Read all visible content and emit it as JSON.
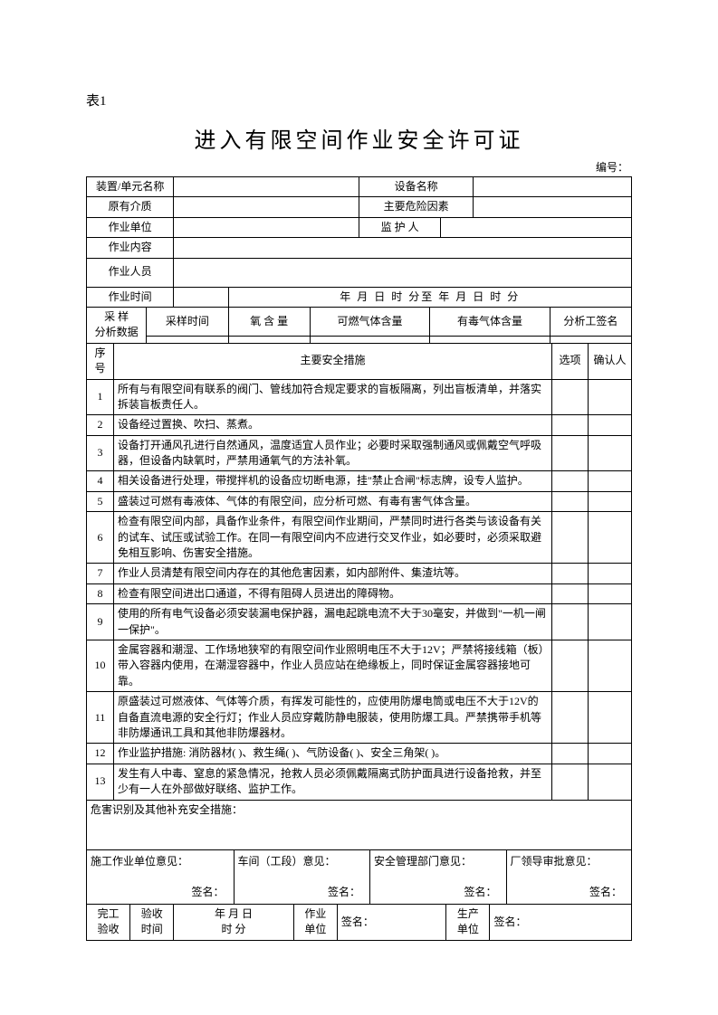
{
  "table_label": "表1",
  "title": "进入有限空间作业安全许可证",
  "serial_label": "编号：",
  "header": {
    "unit_name_label": "装置/单元名称",
    "equipment_name_label": "设备名称",
    "original_medium_label": "原有介质",
    "hazard_factor_label": "主要危险因素",
    "work_unit_label": "作业单位",
    "supervisor_label": "监 护 人",
    "work_content_label": "作业内容",
    "workers_label": "作业人员",
    "work_time_label": "作业时间",
    "work_time_value": "年    月    日    时    分至    年    月    日    时    分"
  },
  "sampling": {
    "main_label": "采 样\n分析数据",
    "time_label": "采样时间",
    "oxygen_label": "氧 含 量",
    "combustible_label": "可燃气体含量",
    "toxic_label": "有毒气体含量",
    "analyst_label": "分析工签名"
  },
  "measures_header": {
    "num": "序号",
    "measure": "主要安全措施",
    "option": "选项",
    "confirmer": "确认人"
  },
  "measures": [
    {
      "n": "1",
      "text": "所有与有限空间有联系的阀门、管线加符合规定要求的盲板隔离，列出盲板清单，并落实拆装盲板责任人。"
    },
    {
      "n": "2",
      "text": "设备经过置换、吹扫、蒸煮。"
    },
    {
      "n": "3",
      "text": "设备打开通风孔进行自然通风，温度适宜人员作业；必要时采取强制通风或佩戴空气呼吸器，但设备内缺氧时，严禁用通氧气的方法补氧。"
    },
    {
      "n": "4",
      "text": "相关设备进行处理，带搅拌机的设备应切断电源，挂\"禁止合闸\"标志牌，设专人监护。"
    },
    {
      "n": "5",
      "text": "盛装过可燃有毒液体、气体的有限空间，应分析可燃、有毒有害气体含量。"
    },
    {
      "n": "6",
      "text": "检查有限空间内部，具备作业条件，有限空间作业期间，严禁同时进行各类与该设备有关的试车、试压或试验工作。在同一有限空间内不应进行交叉作业，如必要时，必须采取避免相互影响、伤害安全措施。"
    },
    {
      "n": "7",
      "text": "作业人员清楚有限空间内存在的其他危害因素，如内部附件、集渣坑等。"
    },
    {
      "n": "8",
      "text": "检查有限空间进出口通道，不得有阻碍人员进出的障碍物。"
    },
    {
      "n": "9",
      "text": "使用的所有电气设备必须安装漏电保护器，漏电起跳电流不大于30毫安，并做到\"一机一闸一保护\"。"
    },
    {
      "n": "10",
      "text": "金属容器和潮湿、工作场地狭窄的有限空间作业照明电压不大于12V；严禁将接线箱（板）带入容器内使用，在潮湿容器中，作业人员应站在绝缘板上，同时保证金属容器接地可靠。"
    },
    {
      "n": "11",
      "text": "原盛装过可燃液体、气体等介质，有挥发可能性的，应使用防爆电筒或电压不大于12V的自备直流电源的安全行灯；作业人员应穿戴防静电服装，使用防爆工具。严禁携带手机等非防爆通讯工具和其他非防爆器材。"
    },
    {
      "n": "12",
      "text": "作业监护措施: 消防器材(          )、救生绳(          )、气防设备(          )、安全三角架(          )。"
    },
    {
      "n": "13",
      "text": "发生有人中毒、窒息的紧急情况，抢救人员必须佩戴隔离式防护面具进行设备抢救，并至少有一人在外部做好联络、监护工作。"
    }
  ],
  "hazard_identify": "危害识别及其他补充安全措施：",
  "opinions": {
    "construction": "施工作业单位意见：",
    "workshop": "车间（工段）意见：",
    "safety_mgmt": "安全管理部门意见：",
    "leader": "厂领导审批意见：",
    "sign": "签名："
  },
  "completion": {
    "main_label": "完工\n验收",
    "accept_time_label": "验收\n时间",
    "accept_time_value": "年    月    日\n时    分",
    "work_unit_label": "作业\n单位",
    "prod_unit_label": "生产\n单位",
    "sign": "签名："
  }
}
